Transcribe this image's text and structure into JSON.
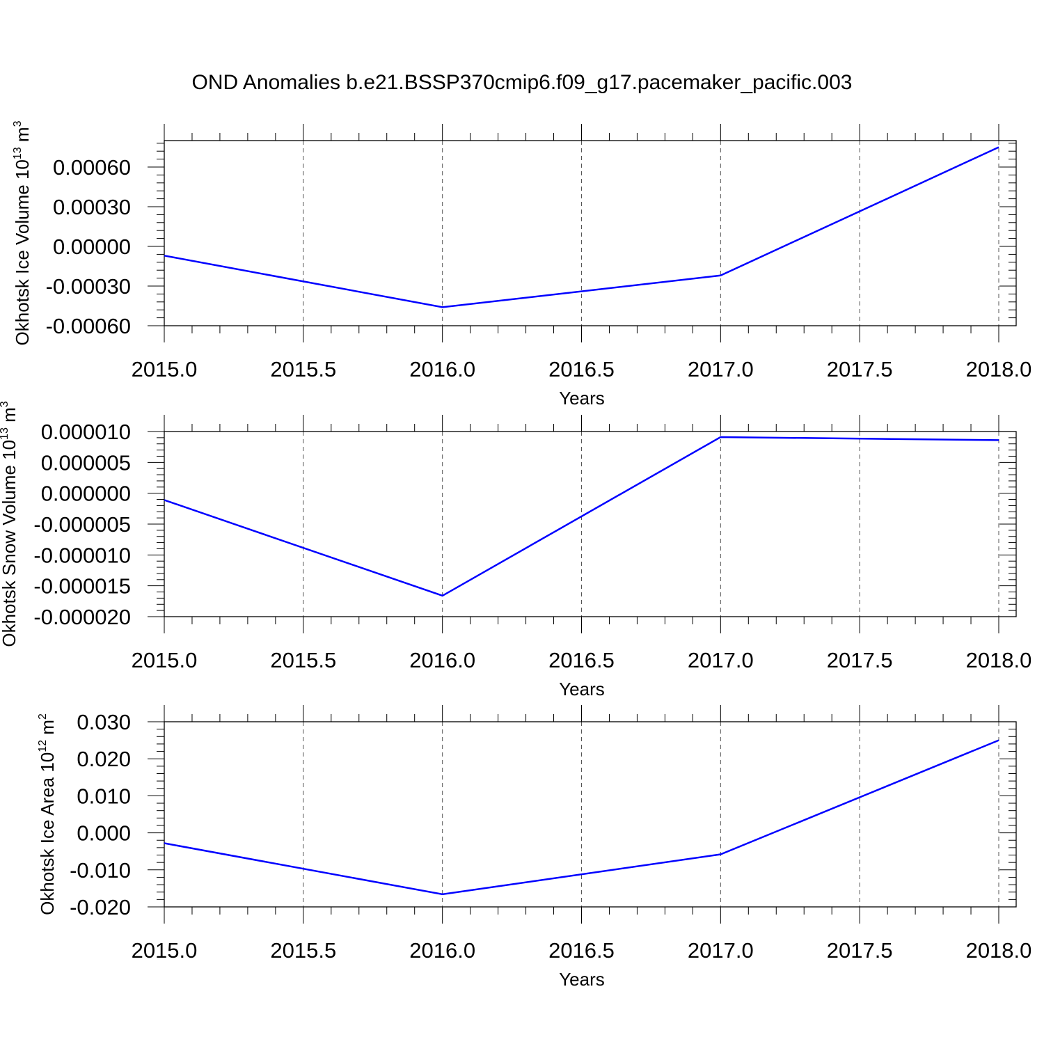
{
  "title": "OND Anomalies b.e21.BSSP370cmip6.f09_g17.pacemaker_pacific.003",
  "colors": {
    "series": "#0000ff"
  },
  "chart_data": [
    {
      "type": "line",
      "xlabel": "Years",
      "ylabel": {
        "text": "Okhotsk Ice Volume 10",
        "sup": "13",
        "unit": " m",
        "unit_sup": "3"
      },
      "xlim": [
        2015.0,
        2018.0
      ],
      "ylim": [
        -0.0006,
        0.0008
      ],
      "x_ticks": [
        "2015.0",
        "2015.5",
        "2016.0",
        "2016.5",
        "2017.0",
        "2017.5",
        "2018.0"
      ],
      "y_ticks": [
        "-0.00060",
        "-0.00030",
        "0.00000",
        "0.00030",
        "0.00060"
      ],
      "grid": "x-dashed",
      "series": [
        {
          "x": [
            2015.0,
            2016.0,
            2017.0,
            2018.0
          ],
          "y": [
            -7e-05,
            -0.00046,
            -0.00022,
            0.00075
          ]
        }
      ]
    },
    {
      "type": "line",
      "xlabel": "Years",
      "ylabel": {
        "text": "Okhotsk Snow Volume 10",
        "sup": "13",
        "unit": " m",
        "unit_sup": "3"
      },
      "xlim": [
        2015.0,
        2018.0
      ],
      "ylim": [
        -2e-05,
        1e-05
      ],
      "x_ticks": [
        "2015.0",
        "2015.5",
        "2016.0",
        "2016.5",
        "2017.0",
        "2017.5",
        "2018.0"
      ],
      "y_ticks": [
        "-0.000020",
        "-0.000015",
        "-0.000010",
        "-0.000005",
        "0.000000",
        "0.000005",
        "0.000010"
      ],
      "grid": "x-dashed",
      "series": [
        {
          "x": [
            2015.0,
            2016.0,
            2017.0,
            2018.0
          ],
          "y": [
            -1.1e-06,
            -1.66e-05,
            9.1e-06,
            8.6e-06
          ]
        }
      ]
    },
    {
      "type": "line",
      "xlabel": "Years",
      "ylabel": {
        "text": "Okhotsk Ice Area 10",
        "sup": "12",
        "unit": " m",
        "unit_sup": "2"
      },
      "xlim": [
        2015.0,
        2018.0
      ],
      "ylim": [
        -0.02,
        0.03
      ],
      "x_ticks": [
        "2015.0",
        "2015.5",
        "2016.0",
        "2016.5",
        "2017.0",
        "2017.5",
        "2018.0"
      ],
      "y_ticks": [
        "-0.020",
        "-0.010",
        "0.000",
        "0.010",
        "0.020",
        "0.030"
      ],
      "grid": "x-dashed",
      "series": [
        {
          "x": [
            2015.0,
            2016.0,
            2017.0,
            2018.0
          ],
          "y": [
            -0.0028,
            -0.0166,
            -0.0058,
            0.025
          ]
        }
      ]
    }
  ]
}
